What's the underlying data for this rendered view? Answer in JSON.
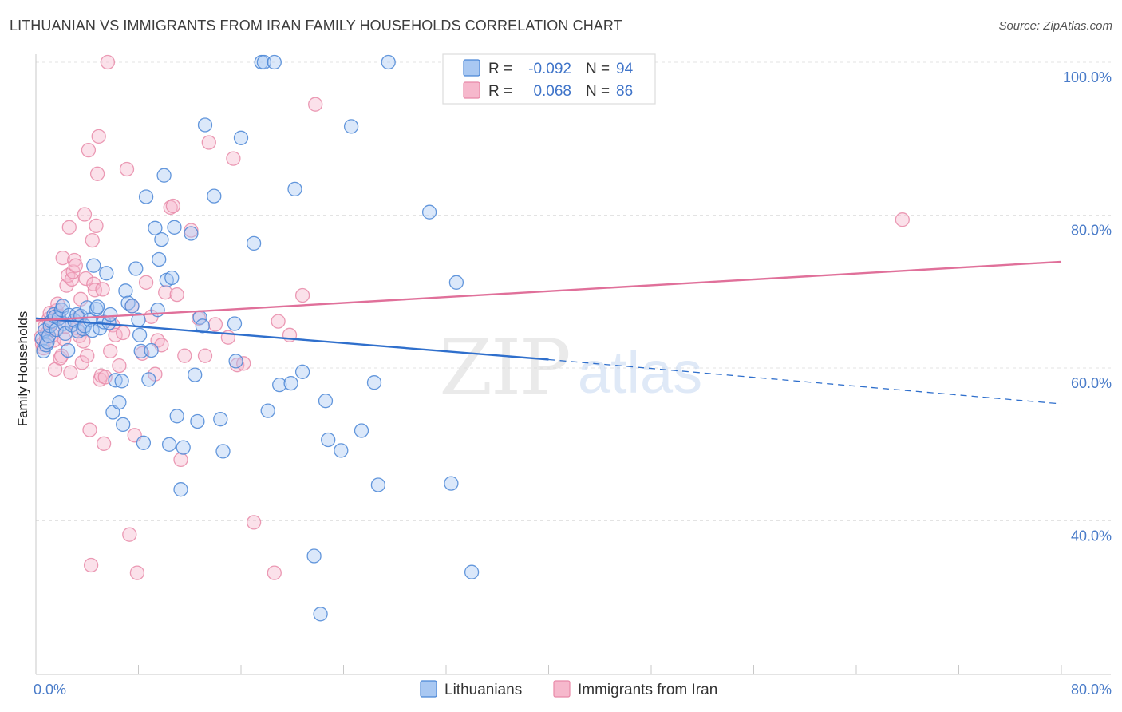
{
  "title": "LITHUANIAN VS IMMIGRANTS FROM IRAN FAMILY HOUSEHOLDS CORRELATION CHART",
  "source": "Source: ZipAtlas.com",
  "watermark": {
    "zip": "ZIP",
    "atlas": "atlas"
  },
  "colors": {
    "blue_fill": "#a9c8f2",
    "blue_stroke": "#4a86d6",
    "blue_line": "#2f6fcc",
    "pink_fill": "#f6b8cc",
    "pink_stroke": "#e889a8",
    "pink_line": "#e0709a",
    "grid": "#e3e3e3",
    "tick_label": "#4a7cc9"
  },
  "chart_data": {
    "type": "scatter",
    "ylabel": "Family Households",
    "xlim": [
      0,
      80
    ],
    "ylim": [
      20,
      103
    ],
    "x_tick_labels": [
      "0.0%",
      "80.0%"
    ],
    "x_minor_ticks": [
      8,
      16,
      24,
      32,
      40,
      48,
      56,
      64,
      72,
      80
    ],
    "y_ticks": [
      {
        "value": 100,
        "label": "100.0%"
      },
      {
        "value": 80,
        "label": "80.0%"
      },
      {
        "value": 60,
        "label": "60.0%"
      },
      {
        "value": 40,
        "label": "40.0%"
      }
    ],
    "legend": [
      {
        "series": "Lithuanians",
        "r_label": "R =",
        "r_value": "-0.092",
        "n_label": "N =",
        "n_value": "94"
      },
      {
        "series": "Immigrants from Iran",
        "r_label": "R =",
        "r_value": "0.068",
        "n_label": "N =",
        "n_value": "86"
      }
    ],
    "series": [
      {
        "name": "Lithuanians",
        "color": "blue",
        "trend": {
          "x0": 0,
          "y0": 66.5,
          "x1": 40,
          "y1": 61.1,
          "dash_to_x": 80,
          "dash_to_y": 55.3
        },
        "points": [
          [
            0.5,
            63.8
          ],
          [
            0.6,
            62.2
          ],
          [
            0.7,
            64.9
          ],
          [
            0.8,
            63.0
          ],
          [
            0.9,
            63.4
          ],
          [
            1.0,
            64.2
          ],
          [
            1.1,
            65.5
          ],
          [
            1.2,
            66.1
          ],
          [
            1.4,
            67.0
          ],
          [
            1.5,
            66.7
          ],
          [
            1.6,
            65.0
          ],
          [
            1.8,
            66.5
          ],
          [
            2.0,
            67.6
          ],
          [
            2.1,
            68.1
          ],
          [
            2.2,
            65.8
          ],
          [
            2.3,
            64.5
          ],
          [
            2.5,
            62.3
          ],
          [
            2.6,
            66.9
          ],
          [
            2.8,
            65.6
          ],
          [
            3.0,
            66.2
          ],
          [
            3.2,
            67.0
          ],
          [
            3.3,
            64.8
          ],
          [
            3.5,
            66.8
          ],
          [
            3.7,
            65.1
          ],
          [
            3.8,
            65.5
          ],
          [
            4.0,
            67.9
          ],
          [
            4.2,
            66.3
          ],
          [
            4.4,
            64.9
          ],
          [
            4.5,
            73.4
          ],
          [
            4.7,
            67.7
          ],
          [
            4.8,
            68.0
          ],
          [
            5.0,
            65.2
          ],
          [
            5.3,
            66.0
          ],
          [
            5.5,
            72.4
          ],
          [
            5.7,
            65.9
          ],
          [
            5.8,
            67.0
          ],
          [
            6.0,
            54.2
          ],
          [
            6.2,
            58.4
          ],
          [
            6.5,
            55.5
          ],
          [
            6.7,
            58.3
          ],
          [
            6.8,
            52.6
          ],
          [
            7.0,
            70.1
          ],
          [
            7.2,
            68.5
          ],
          [
            7.5,
            68.1
          ],
          [
            7.8,
            73.0
          ],
          [
            8.0,
            66.3
          ],
          [
            8.1,
            64.3
          ],
          [
            8.2,
            62.2
          ],
          [
            8.4,
            50.2
          ],
          [
            8.6,
            82.4
          ],
          [
            8.8,
            58.5
          ],
          [
            9.0,
            62.3
          ],
          [
            9.3,
            78.3
          ],
          [
            9.5,
            67.6
          ],
          [
            9.6,
            74.2
          ],
          [
            9.8,
            76.8
          ],
          [
            10.0,
            85.2
          ],
          [
            10.2,
            71.5
          ],
          [
            10.4,
            50.0
          ],
          [
            10.6,
            71.8
          ],
          [
            10.8,
            78.4
          ],
          [
            11.0,
            53.7
          ],
          [
            11.3,
            44.1
          ],
          [
            11.5,
            49.6
          ],
          [
            12.1,
            77.6
          ],
          [
            12.4,
            59.1
          ],
          [
            12.6,
            53.0
          ],
          [
            12.8,
            66.6
          ],
          [
            13.0,
            65.5
          ],
          [
            13.2,
            91.8
          ],
          [
            13.9,
            82.5
          ],
          [
            14.4,
            53.3
          ],
          [
            14.6,
            49.1
          ],
          [
            15.5,
            65.8
          ],
          [
            15.6,
            60.9
          ],
          [
            16.0,
            90.1
          ],
          [
            17.0,
            76.3
          ],
          [
            17.6,
            100.0
          ],
          [
            17.8,
            100.0
          ],
          [
            18.1,
            54.4
          ],
          [
            18.6,
            100.0
          ],
          [
            19.0,
            57.8
          ],
          [
            19.9,
            58.0
          ],
          [
            20.2,
            83.4
          ],
          [
            20.8,
            59.5
          ],
          [
            21.7,
            35.4
          ],
          [
            22.2,
            27.8
          ],
          [
            22.6,
            55.7
          ],
          [
            22.8,
            50.6
          ],
          [
            23.8,
            49.2
          ],
          [
            24.6,
            91.6
          ],
          [
            25.4,
            51.8
          ],
          [
            26.4,
            58.1
          ],
          [
            26.7,
            44.7
          ],
          [
            27.5,
            100.0
          ],
          [
            30.7,
            80.4
          ],
          [
            32.4,
            44.9
          ],
          [
            32.8,
            71.2
          ],
          [
            34.0,
            33.3
          ]
        ]
      },
      {
        "name": "Immigrants from Iran",
        "color": "pink",
        "trend": {
          "x0": 0,
          "y0": 66.2,
          "x1": 80,
          "y1": 73.9
        },
        "points": [
          [
            0.4,
            64.0
          ],
          [
            0.5,
            63.1
          ],
          [
            0.6,
            62.6
          ],
          [
            0.7,
            65.4
          ],
          [
            0.8,
            63.8
          ],
          [
            0.9,
            64.6
          ],
          [
            1.0,
            66.4
          ],
          [
            1.1,
            67.2
          ],
          [
            1.2,
            65.8
          ],
          [
            1.3,
            64.3
          ],
          [
            1.4,
            63.6
          ],
          [
            1.5,
            59.8
          ],
          [
            1.6,
            67.5
          ],
          [
            1.7,
            68.4
          ],
          [
            1.8,
            66.8
          ],
          [
            1.9,
            61.3
          ],
          [
            2.0,
            61.6
          ],
          [
            2.1,
            74.4
          ],
          [
            2.2,
            63.8
          ],
          [
            2.3,
            65.4
          ],
          [
            2.4,
            70.8
          ],
          [
            2.5,
            72.1
          ],
          [
            2.6,
            78.4
          ],
          [
            2.7,
            59.4
          ],
          [
            2.8,
            71.6
          ],
          [
            2.9,
            72.6
          ],
          [
            3.0,
            74.1
          ],
          [
            3.1,
            73.4
          ],
          [
            3.2,
            65.2
          ],
          [
            3.3,
            66.6
          ],
          [
            3.4,
            64.2
          ],
          [
            3.5,
            69.0
          ],
          [
            3.6,
            60.7
          ],
          [
            3.7,
            63.5
          ],
          [
            3.8,
            80.1
          ],
          [
            3.9,
            71.7
          ],
          [
            4.0,
            61.6
          ],
          [
            4.1,
            88.5
          ],
          [
            4.2,
            51.9
          ],
          [
            4.3,
            34.2
          ],
          [
            4.4,
            76.7
          ],
          [
            4.5,
            71.0
          ],
          [
            4.6,
            70.2
          ],
          [
            4.7,
            78.6
          ],
          [
            4.8,
            85.4
          ],
          [
            4.9,
            90.3
          ],
          [
            5.0,
            58.5
          ],
          [
            5.1,
            59.0
          ],
          [
            5.2,
            70.3
          ],
          [
            5.3,
            50.1
          ],
          [
            5.4,
            58.8
          ],
          [
            5.6,
            100.0
          ],
          [
            5.8,
            62.2
          ],
          [
            6.0,
            65.6
          ],
          [
            6.2,
            64.3
          ],
          [
            6.5,
            60.3
          ],
          [
            6.8,
            64.6
          ],
          [
            7.1,
            86.0
          ],
          [
            7.3,
            38.2
          ],
          [
            7.5,
            68.1
          ],
          [
            7.7,
            51.2
          ],
          [
            7.9,
            33.2
          ],
          [
            8.3,
            61.9
          ],
          [
            8.6,
            71.2
          ],
          [
            9.0,
            66.7
          ],
          [
            9.3,
            59.2
          ],
          [
            9.5,
            63.6
          ],
          [
            9.8,
            63.0
          ],
          [
            10.1,
            69.9
          ],
          [
            10.5,
            81.0
          ],
          [
            10.7,
            81.2
          ],
          [
            11.0,
            69.6
          ],
          [
            11.3,
            48.0
          ],
          [
            11.6,
            61.6
          ],
          [
            12.1,
            78.0
          ],
          [
            12.7,
            66.5
          ],
          [
            13.2,
            61.6
          ],
          [
            13.5,
            89.5
          ],
          [
            14.0,
            65.7
          ],
          [
            15.0,
            64.0
          ],
          [
            15.4,
            87.4
          ],
          [
            15.7,
            60.4
          ],
          [
            16.2,
            60.6
          ],
          [
            17.0,
            39.8
          ],
          [
            18.6,
            33.2
          ],
          [
            18.9,
            66.1
          ],
          [
            19.8,
            64.3
          ],
          [
            20.8,
            69.5
          ],
          [
            21.8,
            94.5
          ],
          [
            67.6,
            79.4
          ]
        ]
      }
    ]
  }
}
